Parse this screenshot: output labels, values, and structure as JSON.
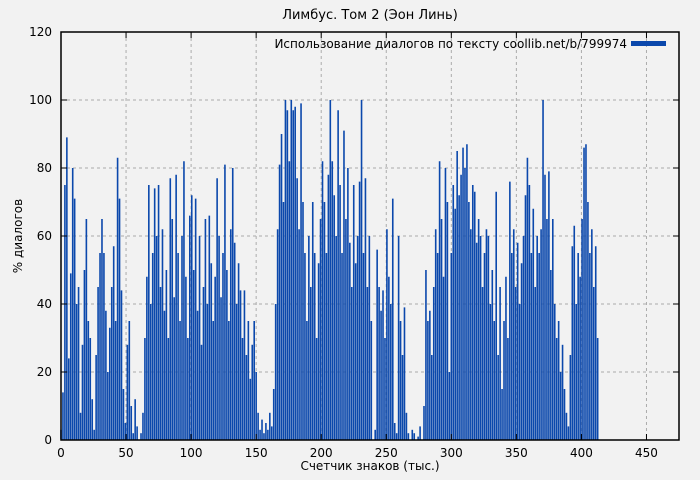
{
  "window": {
    "background": "#f2f2f2"
  },
  "chart_data": {
    "type": "bar",
    "style": "impulses",
    "title": "Лимбус. Том 2 (Эон Линь)",
    "legend": {
      "label": "Использование диалогов по тексту coollib.net/b/799974",
      "position": "top-right-inside",
      "swatch_color": "#0b48ac"
    },
    "xlabel": "Счетчик знаков (тыс.)",
    "ylabel": "% диалогов",
    "xlim": [
      0,
      475
    ],
    "ylim": [
      0,
      120
    ],
    "x_ticks": [
      0,
      50,
      100,
      150,
      200,
      250,
      300,
      350,
      400,
      450
    ],
    "y_ticks": [
      0,
      20,
      40,
      60,
      80,
      100,
      120
    ],
    "grid": true,
    "bar_color": "#0b48ac",
    "grid_color": "#ababab",
    "border_color": "#000000",
    "x_start": 0,
    "x_step": 1.5,
    "values": [
      3,
      14,
      75,
      89,
      24,
      49,
      80,
      71,
      40,
      45,
      8,
      28,
      50,
      65,
      35,
      30,
      12,
      3,
      25,
      45,
      55,
      65,
      55,
      38,
      20,
      33,
      45,
      57,
      35,
      83,
      71,
      44,
      15,
      5,
      28,
      35,
      10,
      2,
      12,
      4,
      0,
      2,
      8,
      30,
      48,
      75,
      40,
      55,
      74,
      60,
      75,
      45,
      62,
      38,
      50,
      30,
      77,
      65,
      42,
      78,
      55,
      35,
      60,
      82,
      48,
      30,
      66,
      72,
      50,
      71,
      38,
      60,
      28,
      45,
      65,
      40,
      66,
      52,
      35,
      48,
      77,
      60,
      42,
      55,
      81,
      50,
      35,
      62,
      80,
      58,
      40,
      52,
      44,
      30,
      44,
      25,
      35,
      18,
      28,
      35,
      20,
      8,
      3,
      6,
      2,
      5,
      3,
      8,
      4,
      15,
      40,
      62,
      81,
      90,
      70,
      100,
      97,
      82,
      100,
      97,
      98,
      77,
      62,
      99,
      70,
      55,
      35,
      60,
      45,
      70,
      55,
      30,
      52,
      65,
      82,
      70,
      55,
      78,
      100,
      82,
      72,
      60,
      97,
      75,
      55,
      91,
      65,
      80,
      58,
      45,
      75,
      52,
      60,
      76,
      100,
      55,
      77,
      45,
      60,
      35,
      0,
      3,
      56,
      45,
      38,
      44,
      30,
      62,
      48,
      40,
      71,
      5,
      2,
      60,
      35,
      25,
      39,
      8,
      2,
      0,
      3,
      2,
      0,
      1,
      4,
      0,
      10,
      50,
      35,
      38,
      25,
      45,
      62,
      55,
      82,
      65,
      48,
      80,
      70,
      20,
      55,
      75,
      68,
      85,
      72,
      78,
      86,
      80,
      87,
      70,
      62,
      75,
      73,
      58,
      65,
      60,
      45,
      55,
      62,
      60,
      40,
      50,
      35,
      73,
      25,
      45,
      15,
      35,
      48,
      30,
      76,
      55,
      62,
      45,
      58,
      40,
      52,
      60,
      72,
      83,
      75,
      55,
      68,
      45,
      60,
      55,
      62,
      100,
      78,
      65,
      79,
      50,
      65,
      40,
      30,
      35,
      20,
      28,
      15,
      8,
      4,
      25,
      57,
      63,
      40,
      55,
      48,
      65,
      86,
      87,
      70,
      55,
      62,
      45,
      57,
      30,
      0
    ]
  }
}
